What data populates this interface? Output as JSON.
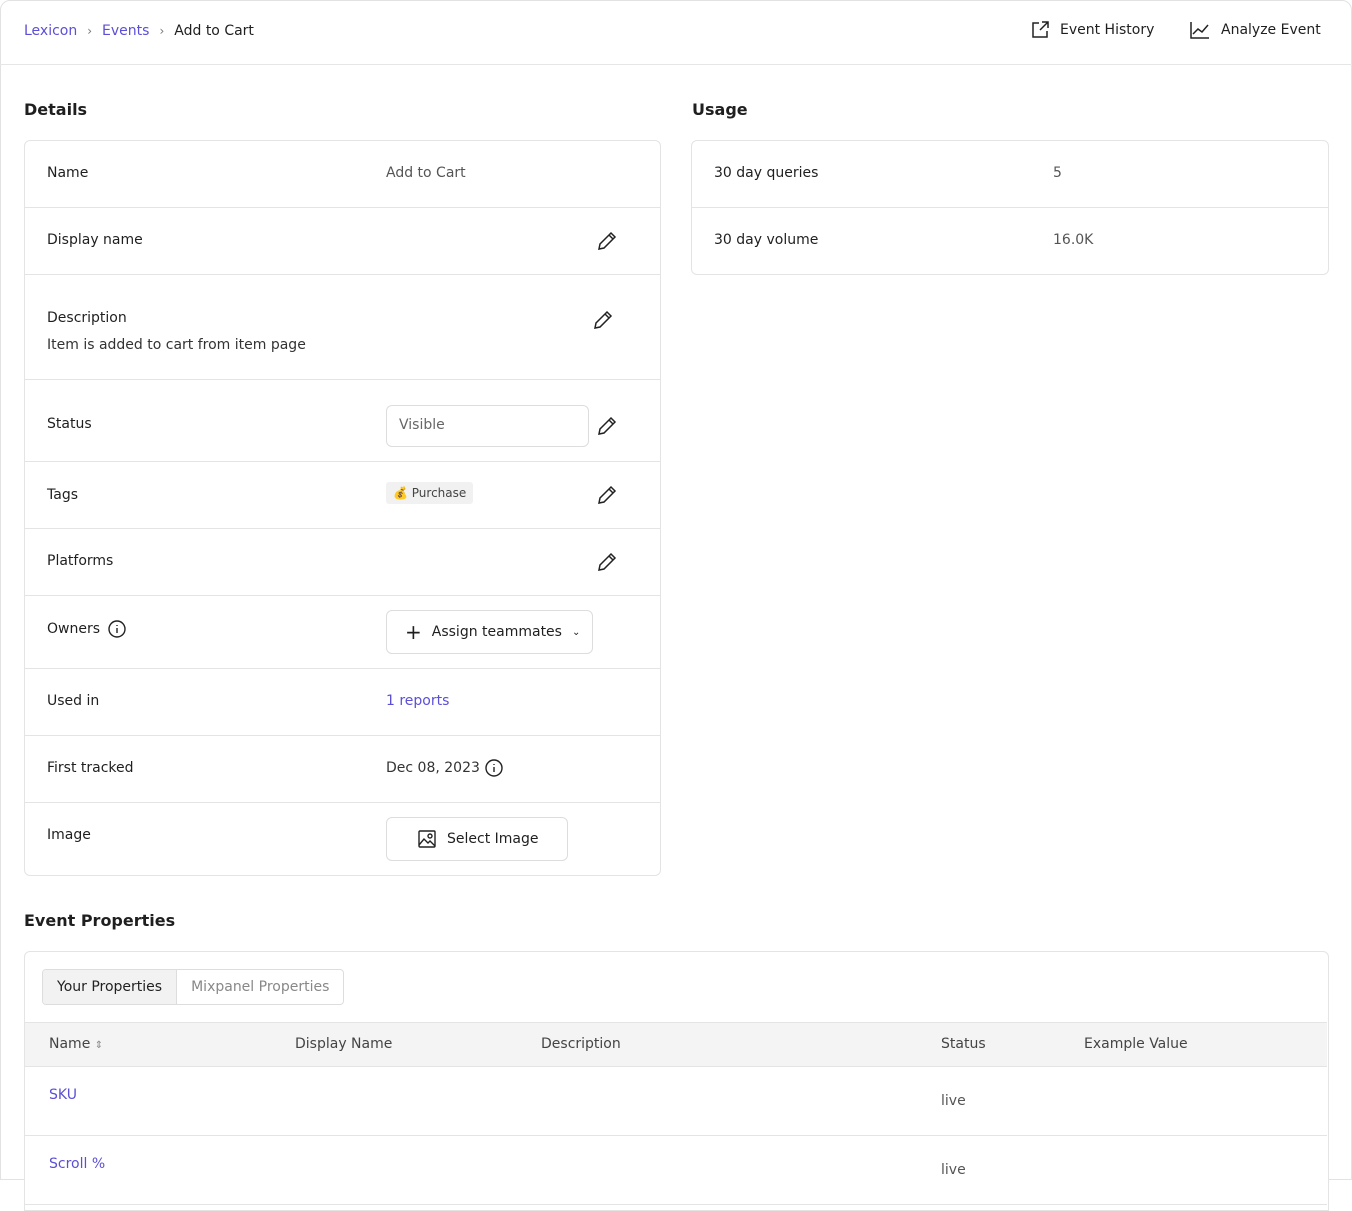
{
  "breadcrumb": [
    "Lexicon",
    "Events",
    "Add to Cart"
  ],
  "header": {
    "event_history": "Event History",
    "analyze_event": "Analyze Event"
  },
  "details": {
    "title": "Details",
    "name_label": "Name",
    "name_value": "Add to Cart",
    "display_name_label": "Display name",
    "description_label": "Description",
    "description_value": "Item is added to cart from item page",
    "status_label": "Status",
    "status_value": "Visible",
    "tags_label": "Tags",
    "tag_icon": "💰",
    "tag_value": "Purchase",
    "platforms_label": "Platforms",
    "owners_label": "Owners",
    "owners_button": "Assign teammates",
    "used_in_label": "Used in",
    "used_in_value": "1 reports",
    "first_tracked_label": "First tracked",
    "first_tracked_value": "Dec 08, 2023",
    "image_label": "Image",
    "image_button": "Select Image"
  },
  "usage": {
    "title": "Usage",
    "queries_label": "30 day queries",
    "queries_value": "5",
    "volume_label": "30 day volume",
    "volume_value": "16.0K"
  },
  "properties": {
    "title": "Event Properties",
    "tabs": [
      "Your Properties",
      "Mixpanel Properties"
    ],
    "columns": [
      "Name",
      "Display Name",
      "Description",
      "Status",
      "Example Value"
    ],
    "rows": [
      {
        "name": "SKU",
        "status": "live"
      },
      {
        "name": "Scroll %",
        "status": "live"
      }
    ]
  },
  "colors": {
    "accent": "#5b4fd6"
  }
}
